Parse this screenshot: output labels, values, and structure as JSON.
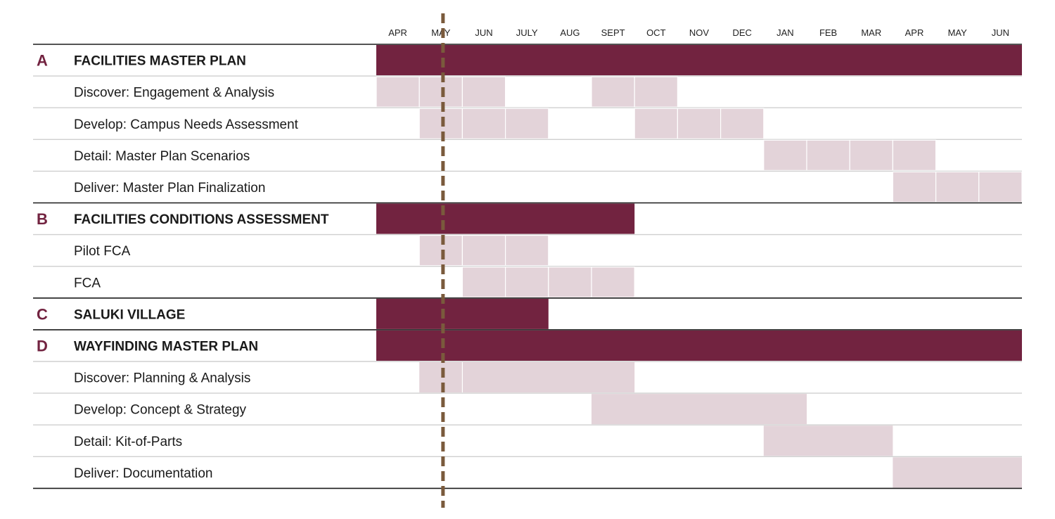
{
  "colors": {
    "group_bar": "#722340",
    "task_cell": "#e3d3d9",
    "cell_divider": "#ffffff",
    "row_divider": "#cfcfcf",
    "group_divider": "#1a1a1a",
    "today_marker": "#7a5a3c",
    "letter": "#722340"
  },
  "chart_data": {
    "type": "gantt",
    "months": [
      "APR",
      "MAY",
      "JUN",
      "JULY",
      "AUG",
      "SEPT",
      "OCT",
      "NOV",
      "DEC",
      "JAN",
      "FEB",
      "MAR",
      "APR",
      "MAY",
      "JUN"
    ],
    "today_marker_month_position": 1.55,
    "rows": [
      {
        "kind": "group",
        "letter": "A",
        "label": "FACILITIES MASTER PLAN",
        "start": 0,
        "end": 15
      },
      {
        "kind": "task",
        "label": "Discover: Engagement & Analysis",
        "start": 0,
        "end": 3,
        "cells": [
          0,
          1,
          2,
          5,
          6
        ]
      },
      {
        "kind": "task",
        "label": "Develop: Campus Needs Assessment",
        "cells": [
          1,
          2,
          3,
          6,
          7,
          8
        ]
      },
      {
        "kind": "task",
        "label": "Detail: Master Plan Scenarios",
        "cells": [
          9,
          10,
          11,
          12
        ]
      },
      {
        "kind": "task",
        "label": "Deliver: Master Plan Finalization",
        "cells": [
          12,
          13,
          14
        ]
      },
      {
        "kind": "group",
        "letter": "B",
        "label": "FACILITIES CONDITIONS ASSESSMENT",
        "start": 0,
        "end": 6
      },
      {
        "kind": "task",
        "label": "Pilot FCA",
        "cells": [
          1,
          2,
          3
        ],
        "dividers": [
          2
        ]
      },
      {
        "kind": "task",
        "label": "FCA",
        "cells": [
          2,
          3,
          4,
          5
        ]
      },
      {
        "kind": "group",
        "letter": "C",
        "label": "SALUKI VILLAGE",
        "start": 0,
        "end": 4
      },
      {
        "kind": "group",
        "letter": "D",
        "label": "WAYFINDING MASTER PLAN",
        "start": 0,
        "end": 15
      },
      {
        "kind": "task",
        "label": "Discover: Planning & Analysis",
        "span": [
          1,
          6
        ],
        "dividers": [
          1
        ]
      },
      {
        "kind": "task",
        "label": "Develop: Concept & Strategy",
        "span": [
          5,
          10
        ]
      },
      {
        "kind": "task",
        "label": "Detail: Kit-of-Parts",
        "span": [
          9,
          12
        ]
      },
      {
        "kind": "task",
        "label": "Deliver: Documentation",
        "span": [
          12,
          15
        ]
      }
    ]
  }
}
